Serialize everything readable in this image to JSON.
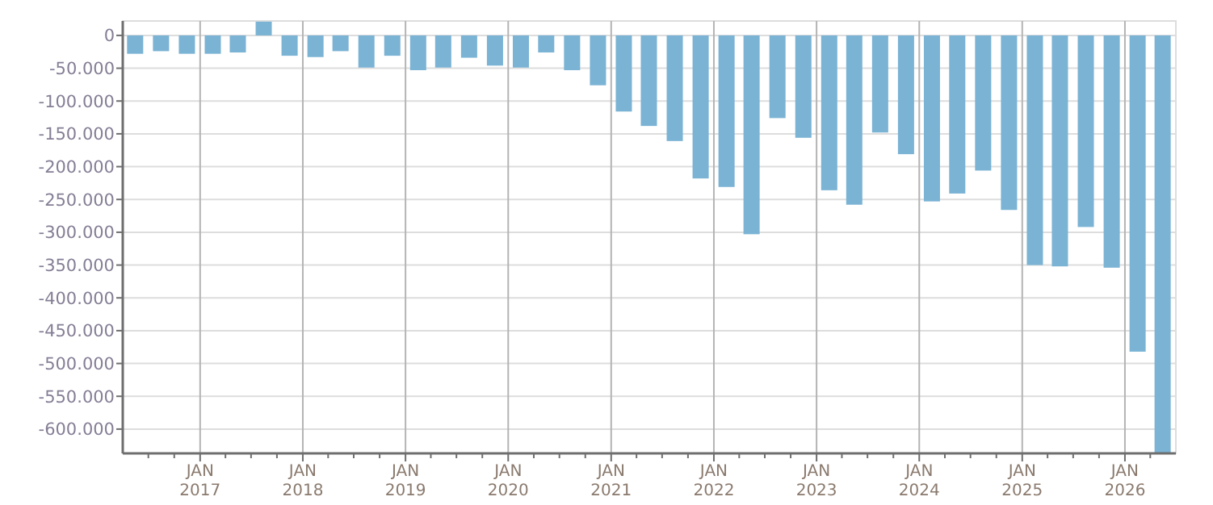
{
  "chart_data": {
    "type": "bar",
    "color": "#7ab3d4",
    "x": [
      "2016-05-15",
      "2016-08-15",
      "2016-11-15",
      "2017-02-15",
      "2017-05-15",
      "2017-08-15",
      "2017-11-15",
      "2018-02-15",
      "2018-05-15",
      "2018-08-15",
      "2018-11-15",
      "2019-02-15",
      "2019-05-15",
      "2019-08-15",
      "2019-11-15",
      "2020-02-15",
      "2020-05-15",
      "2020-08-15",
      "2020-11-15",
      "2021-02-15",
      "2021-05-15",
      "2021-08-15",
      "2021-11-15",
      "2022-02-15",
      "2022-05-15",
      "2022-08-15",
      "2022-11-15",
      "2023-02-15",
      "2023-05-15",
      "2023-08-15",
      "2023-11-15",
      "2024-02-15",
      "2024-05-15",
      "2024-08-15",
      "2024-11-15",
      "2025-02-15",
      "2025-05-15",
      "2025-08-15",
      "2025-11-15",
      "2026-02-15",
      "2026-05-15"
    ],
    "values": [
      -28000,
      -24000,
      -28000,
      -28000,
      -26000,
      21000,
      -31000,
      -33000,
      -24000,
      -49000,
      -31000,
      -53000,
      -49000,
      -34000,
      -46000,
      -49000,
      -26000,
      -53000,
      -76000,
      -116000,
      -138000,
      -161000,
      -218000,
      -231000,
      -303000,
      -126000,
      -156000,
      -236000,
      -258000,
      -148000,
      -181000,
      -253000,
      -241000,
      -206000,
      -266000,
      -350000,
      -352000,
      -292000,
      -354000,
      -482000,
      -637000
    ],
    "xlim": [
      "2016-04-01",
      "2026-07-01"
    ],
    "ylim": [
      -637000,
      22000
    ],
    "yticks": [
      {
        "value": 0,
        "label": "0"
      },
      {
        "value": -50000,
        "label": "-50.000"
      },
      {
        "value": -100000,
        "label": "-100.000"
      },
      {
        "value": -150000,
        "label": "-150.000"
      },
      {
        "value": -200000,
        "label": "-200.000"
      },
      {
        "value": -250000,
        "label": "-250.000"
      },
      {
        "value": -300000,
        "label": "-300.000"
      },
      {
        "value": -350000,
        "label": "-350.000"
      },
      {
        "value": -400000,
        "label": "-400.000"
      },
      {
        "value": -450000,
        "label": "-450.000"
      },
      {
        "value": -500000,
        "label": "-500.000"
      },
      {
        "value": -550000,
        "label": "-550.000"
      },
      {
        "value": -600000,
        "label": "-600.000"
      }
    ],
    "xticks": [
      {
        "value": "2016-07-01",
        "label": null
      },
      {
        "value": "2016-10-01",
        "label": null
      },
      {
        "value": "2017-01-01",
        "label": "JAN\n2017"
      },
      {
        "value": "2017-04-01",
        "label": null
      },
      {
        "value": "2017-07-01",
        "label": null
      },
      {
        "value": "2017-10-01",
        "label": null
      },
      {
        "value": "2018-01-01",
        "label": "JAN\n2018"
      },
      {
        "value": "2018-04-01",
        "label": null
      },
      {
        "value": "2018-07-01",
        "label": null
      },
      {
        "value": "2018-10-01",
        "label": null
      },
      {
        "value": "2019-01-01",
        "label": "JAN\n2019"
      },
      {
        "value": "2019-04-01",
        "label": null
      },
      {
        "value": "2019-07-01",
        "label": null
      },
      {
        "value": "2019-10-01",
        "label": null
      },
      {
        "value": "2020-01-01",
        "label": "JAN\n2020"
      },
      {
        "value": "2020-04-01",
        "label": null
      },
      {
        "value": "2020-07-01",
        "label": null
      },
      {
        "value": "2020-10-01",
        "label": null
      },
      {
        "value": "2021-01-01",
        "label": "JAN\n2021"
      },
      {
        "value": "2021-04-01",
        "label": null
      },
      {
        "value": "2021-07-01",
        "label": null
      },
      {
        "value": "2021-10-01",
        "label": null
      },
      {
        "value": "2022-01-01",
        "label": "JAN\n2022"
      },
      {
        "value": "2022-04-01",
        "label": null
      },
      {
        "value": "2022-07-01",
        "label": null
      },
      {
        "value": "2022-10-01",
        "label": null
      },
      {
        "value": "2023-01-01",
        "label": "JAN\n2023"
      },
      {
        "value": "2023-04-01",
        "label": null
      },
      {
        "value": "2023-07-01",
        "label": null
      },
      {
        "value": "2023-10-01",
        "label": null
      },
      {
        "value": "2024-01-01",
        "label": "JAN\n2024"
      },
      {
        "value": "2024-04-01",
        "label": null
      },
      {
        "value": "2024-07-01",
        "label": null
      },
      {
        "value": "2024-10-01",
        "label": null
      },
      {
        "value": "2025-01-01",
        "label": "JAN\n2025"
      },
      {
        "value": "2025-04-01",
        "label": null
      },
      {
        "value": "2025-07-01",
        "label": null
      },
      {
        "value": "2025-10-01",
        "label": null
      },
      {
        "value": "2026-01-01",
        "label": "JAN\n2026"
      },
      {
        "value": "2026-04-01",
        "label": null
      }
    ],
    "grid": true
  }
}
